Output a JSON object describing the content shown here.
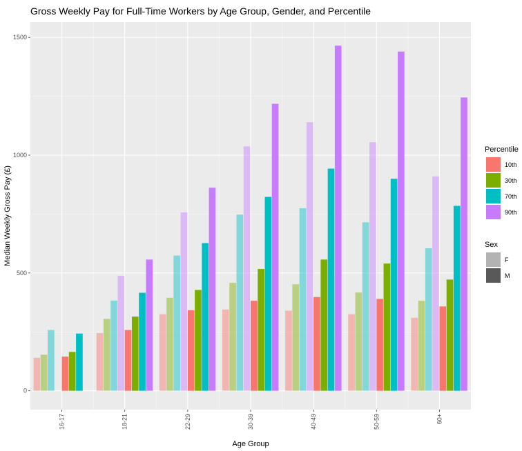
{
  "chart_data": {
    "type": "bar",
    "title": "Gross Weekly Pay for Full-Time Workers by Age Group, Gender, and Percentile",
    "xlabel": "Age Group",
    "ylabel": "Median Weekly Gross Pay (£)",
    "ylim": [
      -80,
      1565
    ],
    "yticks": [
      0,
      500,
      1000,
      1500
    ],
    "grid": true,
    "legend_position": "right",
    "categories": [
      "16-17",
      "18-21",
      "22-29",
      "30-39",
      "40-49",
      "50-59",
      "60+"
    ],
    "percentile_legend": {
      "title": "Percentile",
      "items": [
        {
          "label": "10th",
          "color": "#F8766D"
        },
        {
          "label": "30th",
          "color": "#7CAE00"
        },
        {
          "label": "70th",
          "color": "#00BFC4"
        },
        {
          "label": "90th",
          "color": "#C77CFF"
        }
      ]
    },
    "sex_legend": {
      "title": "Sex",
      "items": [
        {
          "label": "F",
          "color": "#b3b3b3"
        },
        {
          "label": "M",
          "color": "#595959"
        }
      ]
    },
    "series": [
      {
        "sex": "F",
        "percentile": "10th",
        "values": [
          140,
          245,
          325,
          345,
          340,
          325,
          310
        ]
      },
      {
        "sex": "F",
        "percentile": "30th",
        "values": [
          153,
          305,
          395,
          458,
          452,
          417,
          382
        ]
      },
      {
        "sex": "F",
        "percentile": "70th",
        "values": [
          258,
          383,
          574,
          748,
          775,
          715,
          605
        ]
      },
      {
        "sex": "F",
        "percentile": "90th",
        "values": [
          null,
          488,
          757,
          1037,
          1140,
          1055,
          910
        ]
      },
      {
        "sex": "M",
        "percentile": "10th",
        "values": [
          145,
          258,
          342,
          382,
          398,
          390,
          358
        ]
      },
      {
        "sex": "M",
        "percentile": "30th",
        "values": [
          165,
          315,
          428,
          517,
          557,
          540,
          472
        ]
      },
      {
        "sex": "M",
        "percentile": "70th",
        "values": [
          243,
          416,
          627,
          823,
          943,
          900,
          785
        ]
      },
      {
        "sex": "M",
        "percentile": "90th",
        "values": [
          null,
          557,
          862,
          1218,
          1465,
          1440,
          1245
        ]
      }
    ]
  }
}
